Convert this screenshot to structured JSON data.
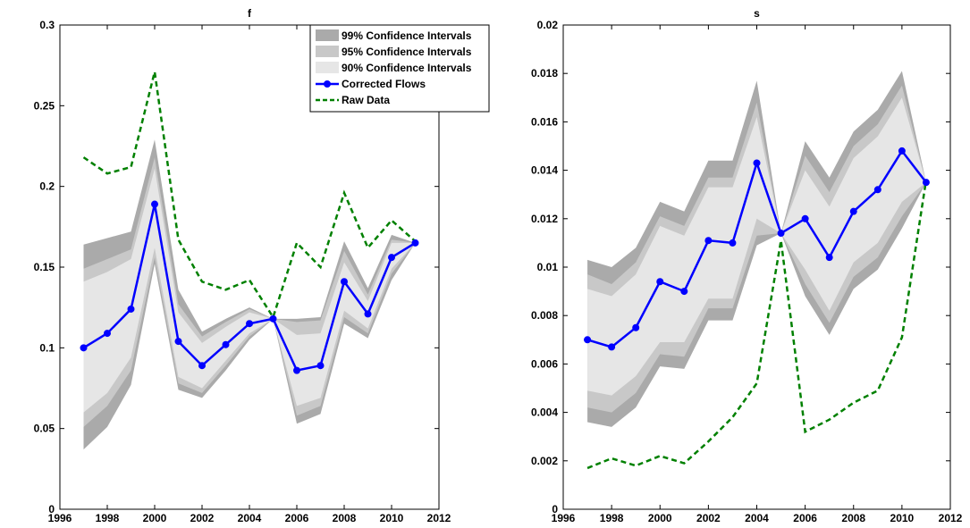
{
  "colors": {
    "ci99": "#aaaaaa",
    "ci95": "#c8c8c8",
    "ci90": "#e6e6e6",
    "corrected": "#0000ff",
    "raw": "#008000",
    "axis": "#000000"
  },
  "legend": {
    "ci99_label": "99% Confidence Intervals",
    "ci95_label": "95% Confidence Intervals",
    "ci90_label": "90% Confidence Intervals",
    "corrected_label": "Corrected Flows",
    "raw_label": "Raw Data"
  },
  "chart_data": [
    {
      "type": "line",
      "title": "f",
      "xlabel": "",
      "ylabel": "",
      "xlim": [
        1996,
        2012
      ],
      "ylim": [
        0,
        0.3
      ],
      "xticks": [
        1996,
        1998,
        2000,
        2002,
        2004,
        2006,
        2008,
        2010,
        2012
      ],
      "xtick_labels": [
        "1996",
        "1998",
        "2000",
        "2002",
        "2004",
        "2006",
        "2008",
        "2010",
        "2012"
      ],
      "yticks": [
        0,
        0.05,
        0.1,
        0.15,
        0.2,
        0.25,
        0.3
      ],
      "ytick_labels": [
        "0",
        "0.05",
        "0.1",
        "0.15",
        "0.2",
        "0.25",
        "0.3"
      ],
      "x": [
        1997,
        1998,
        1999,
        2000,
        2001,
        2002,
        2003,
        2004,
        2005,
        2006,
        2007,
        2008,
        2009,
        2010,
        2011
      ],
      "bands": {
        "ci99": {
          "lower": [
            0.037,
            0.051,
            0.077,
            0.152,
            0.074,
            0.069,
            0.086,
            0.105,
            0.118,
            0.053,
            0.059,
            0.115,
            0.106,
            0.142,
            0.165
          ],
          "upper": [
            0.164,
            0.168,
            0.172,
            0.229,
            0.136,
            0.11,
            0.118,
            0.125,
            0.118,
            0.118,
            0.119,
            0.166,
            0.137,
            0.17,
            0.165
          ]
        },
        "ci95": {
          "lower": [
            0.051,
            0.064,
            0.086,
            0.156,
            0.078,
            0.072,
            0.089,
            0.107,
            0.118,
            0.058,
            0.064,
            0.119,
            0.109,
            0.146,
            0.165
          ],
          "upper": [
            0.149,
            0.155,
            0.161,
            0.218,
            0.127,
            0.107,
            0.116,
            0.124,
            0.118,
            0.116,
            0.117,
            0.16,
            0.133,
            0.167,
            0.165
          ]
        },
        "ci90": {
          "lower": [
            0.06,
            0.072,
            0.094,
            0.162,
            0.082,
            0.075,
            0.092,
            0.109,
            0.118,
            0.064,
            0.069,
            0.123,
            0.112,
            0.149,
            0.165
          ],
          "upper": [
            0.141,
            0.147,
            0.155,
            0.211,
            0.122,
            0.103,
            0.113,
            0.122,
            0.118,
            0.108,
            0.109,
            0.153,
            0.129,
            0.165,
            0.165
          ]
        }
      },
      "series": [
        {
          "name": "Corrected Flows",
          "values": [
            0.1,
            0.109,
            0.124,
            0.189,
            0.104,
            0.089,
            0.102,
            0.115,
            0.118,
            0.086,
            0.089,
            0.141,
            0.121,
            0.156,
            0.165
          ]
        },
        {
          "name": "Raw Data",
          "values": [
            0.218,
            0.208,
            0.212,
            0.271,
            0.167,
            0.141,
            0.136,
            0.142,
            0.119,
            0.165,
            0.15,
            0.196,
            0.162,
            0.179,
            0.166
          ]
        }
      ],
      "legend_position": "top-right"
    },
    {
      "type": "line",
      "title": "s",
      "xlabel": "",
      "ylabel": "",
      "xlim": [
        1996,
        2012
      ],
      "ylim": [
        0,
        0.02
      ],
      "xticks": [
        1996,
        1998,
        2000,
        2002,
        2004,
        2006,
        2008,
        2010,
        2012
      ],
      "xtick_labels": [
        "1996",
        "1998",
        "2000",
        "2002",
        "2004",
        "2006",
        "2008",
        "2010",
        "2012"
      ],
      "yticks": [
        0,
        0.002,
        0.004,
        0.006,
        0.008,
        0.01,
        0.012,
        0.014,
        0.016,
        0.018,
        0.02
      ],
      "ytick_labels": [
        "0",
        "0.002",
        "0.004",
        "0.006",
        "0.008",
        "0.01",
        "0.012",
        "0.014",
        "0.016",
        "0.018",
        "0.02"
      ],
      "x": [
        1997,
        1998,
        1999,
        2000,
        2001,
        2002,
        2003,
        2004,
        2005,
        2006,
        2007,
        2008,
        2009,
        2010,
        2011
      ],
      "bands": {
        "ci99": {
          "lower": [
            0.0036,
            0.0034,
            0.0042,
            0.0059,
            0.0058,
            0.0078,
            0.0078,
            0.0109,
            0.0114,
            0.0088,
            0.0072,
            0.0091,
            0.0099,
            0.0116,
            0.0135
          ],
          "upper": [
            0.0103,
            0.01,
            0.0108,
            0.0127,
            0.0123,
            0.0144,
            0.0144,
            0.0177,
            0.0114,
            0.0152,
            0.0137,
            0.0156,
            0.0165,
            0.0181,
            0.0135
          ]
        },
        "ci95": {
          "lower": [
            0.0042,
            0.004,
            0.0048,
            0.0064,
            0.0063,
            0.0083,
            0.0083,
            0.0113,
            0.0114,
            0.0093,
            0.0077,
            0.0096,
            0.0104,
            0.0121,
            0.0135
          ],
          "upper": [
            0.0097,
            0.0093,
            0.0102,
            0.0121,
            0.0117,
            0.0137,
            0.0137,
            0.0168,
            0.0114,
            0.0146,
            0.0131,
            0.015,
            0.0159,
            0.0175,
            0.0135
          ]
        },
        "ci90": {
          "lower": [
            0.0049,
            0.0047,
            0.0055,
            0.0069,
            0.0069,
            0.0087,
            0.0087,
            0.012,
            0.0114,
            0.0099,
            0.0082,
            0.0102,
            0.011,
            0.0127,
            0.0135
          ],
          "upper": [
            0.0091,
            0.0088,
            0.0097,
            0.0117,
            0.0113,
            0.0133,
            0.0133,
            0.0162,
            0.0114,
            0.014,
            0.0125,
            0.0145,
            0.0154,
            0.017,
            0.0135
          ]
        }
      },
      "series": [
        {
          "name": "Corrected Flows",
          "values": [
            0.007,
            0.0067,
            0.0075,
            0.0094,
            0.009,
            0.0111,
            0.011,
            0.0143,
            0.0114,
            0.012,
            0.0104,
            0.0123,
            0.0132,
            0.0148,
            0.0135
          ]
        },
        {
          "name": "Raw Data",
          "values": [
            0.0017,
            0.0021,
            0.0018,
            0.0022,
            0.0019,
            0.0028,
            0.0038,
            0.0052,
            0.0111,
            0.0032,
            0.0037,
            0.0044,
            0.0049,
            0.0071,
            0.0136
          ]
        }
      ]
    }
  ]
}
